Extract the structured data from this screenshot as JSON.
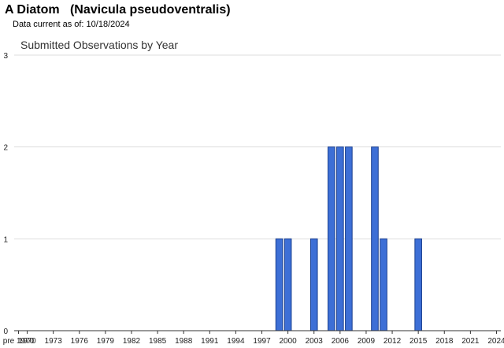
{
  "header": {
    "title": "A Diatom   (Navicula pseudoventralis)",
    "data_current_label": "Data current as of: 10/18/2024"
  },
  "chart_data": {
    "type": "bar",
    "title": "Submitted Observations by Year",
    "xlabel": "",
    "ylabel": "",
    "ylim": [
      0,
      3
    ],
    "y_ticks": [
      0,
      1,
      2,
      3
    ],
    "grid": true,
    "bar_color": "#3d6fd6",
    "bar_edge_color": "#1a3f8f",
    "categories": [
      "pre 1970",
      "1970",
      "1971",
      "1972",
      "1973",
      "1974",
      "1975",
      "1976",
      "1977",
      "1978",
      "1979",
      "1980",
      "1981",
      "1982",
      "1983",
      "1984",
      "1985",
      "1986",
      "1987",
      "1988",
      "1989",
      "1990",
      "1991",
      "1992",
      "1993",
      "1994",
      "1995",
      "1996",
      "1997",
      "1998",
      "1999",
      "2000",
      "2001",
      "2002",
      "2003",
      "2004",
      "2005",
      "2006",
      "2007",
      "2008",
      "2009",
      "2010",
      "2011",
      "2012",
      "2013",
      "2014",
      "2015",
      "2016",
      "2017",
      "2018",
      "2019",
      "2020",
      "2021",
      "2022",
      "2023",
      "2024"
    ],
    "tick_labels": [
      "pre 1970",
      "1970",
      "1973",
      "1976",
      "1979",
      "1982",
      "1985",
      "1988",
      "1991",
      "1994",
      "1997",
      "2000",
      "2003",
      "2006",
      "2009",
      "2012",
      "2015",
      "2018",
      "2021",
      "2024"
    ],
    "values": [
      0,
      0,
      0,
      0,
      0,
      0,
      0,
      0,
      0,
      0,
      0,
      0,
      0,
      0,
      0,
      0,
      0,
      0,
      0,
      0,
      0,
      0,
      0,
      0,
      0,
      0,
      0,
      0,
      0,
      0,
      1,
      1,
      0,
      0,
      1,
      0,
      2,
      2,
      2,
      0,
      0,
      2,
      1,
      0,
      0,
      0,
      1,
      0,
      0,
      0,
      0,
      0,
      0,
      0,
      0,
      0
    ]
  }
}
